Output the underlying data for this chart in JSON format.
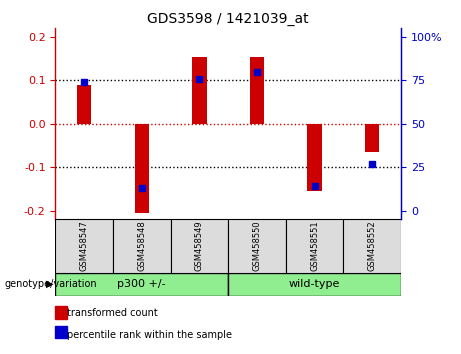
{
  "title": "GDS3598 / 1421039_at",
  "samples": [
    "GSM458547",
    "GSM458548",
    "GSM458549",
    "GSM458550",
    "GSM458551",
    "GSM458552"
  ],
  "red_values": [
    0.09,
    -0.205,
    0.155,
    0.155,
    -0.155,
    -0.065
  ],
  "blue_values": [
    0.74,
    0.13,
    0.76,
    0.8,
    0.14,
    0.27
  ],
  "ylim": [
    -0.22,
    0.22
  ],
  "yticks_left": [
    -0.2,
    -0.1,
    0.0,
    0.1,
    0.2
  ],
  "yticks_right": [
    0,
    25,
    50,
    75,
    100
  ],
  "bar_width": 0.25,
  "blue_marker_size": 5,
  "bg_color": "#DCDCDC",
  "plot_bg": "#FFFFFF",
  "red_color": "#CC0000",
  "blue_color": "#0000CC",
  "group_bg": "#90EE90",
  "group1_label": "p300 +/-",
  "group2_label": "wild-type",
  "legend_red": "transformed count",
  "legend_blue": "percentile rank within the sample",
  "genotype_label": "genotype/variation"
}
